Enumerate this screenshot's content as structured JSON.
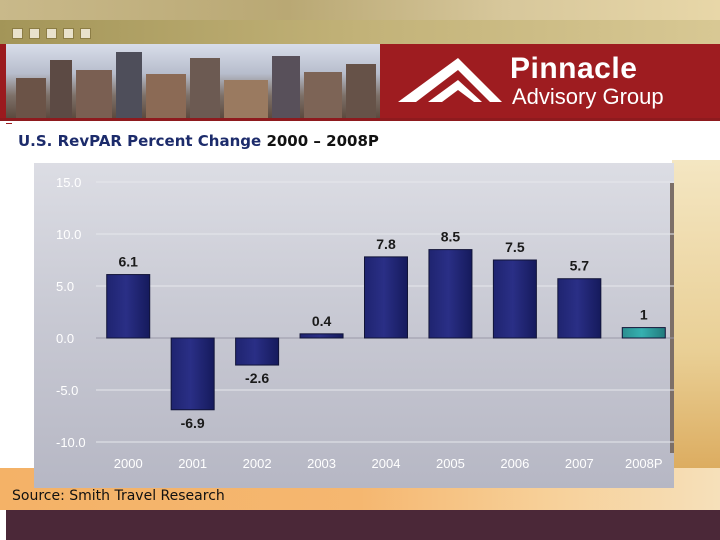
{
  "header": {
    "brand_name": "Pinnacle",
    "brand_sub": "Advisory Group"
  },
  "title": {
    "prefix": "U.S. RevPAR Percent Change",
    "range": "2000 – 2008P"
  },
  "source": "Source: Smith Travel Research",
  "colors": {
    "banner": "#9b1a1e",
    "bar": "#2a2f86",
    "bar_highlight": "#36b0b0",
    "chart_bg": "#c9cad4",
    "footer": "#4b2838"
  },
  "chart_data": {
    "type": "bar",
    "title": "U.S. RevPAR Percent Change 2000 – 2008P",
    "xlabel": "",
    "ylabel": "",
    "ylim": [
      -10,
      15
    ],
    "yticks": [
      "15.0",
      "10.0",
      "5.0",
      "0.0",
      "-5.0",
      "-10.0"
    ],
    "ytick_values": [
      15,
      10,
      5,
      0,
      -5,
      -10
    ],
    "categories": [
      "2000",
      "2001",
      "2002",
      "2003",
      "2004",
      "2005",
      "2006",
      "2007",
      "2008P"
    ],
    "values": [
      6.1,
      -6.9,
      -2.6,
      0.4,
      7.8,
      8.5,
      7.5,
      5.7,
      1
    ],
    "data_labels": [
      "6.1",
      "-6.9",
      "-2.6",
      "0.4",
      "7.8",
      "8.5",
      "7.5",
      "5.7",
      "1"
    ],
    "highlight_index": 8,
    "grid": true,
    "legend": "none"
  }
}
